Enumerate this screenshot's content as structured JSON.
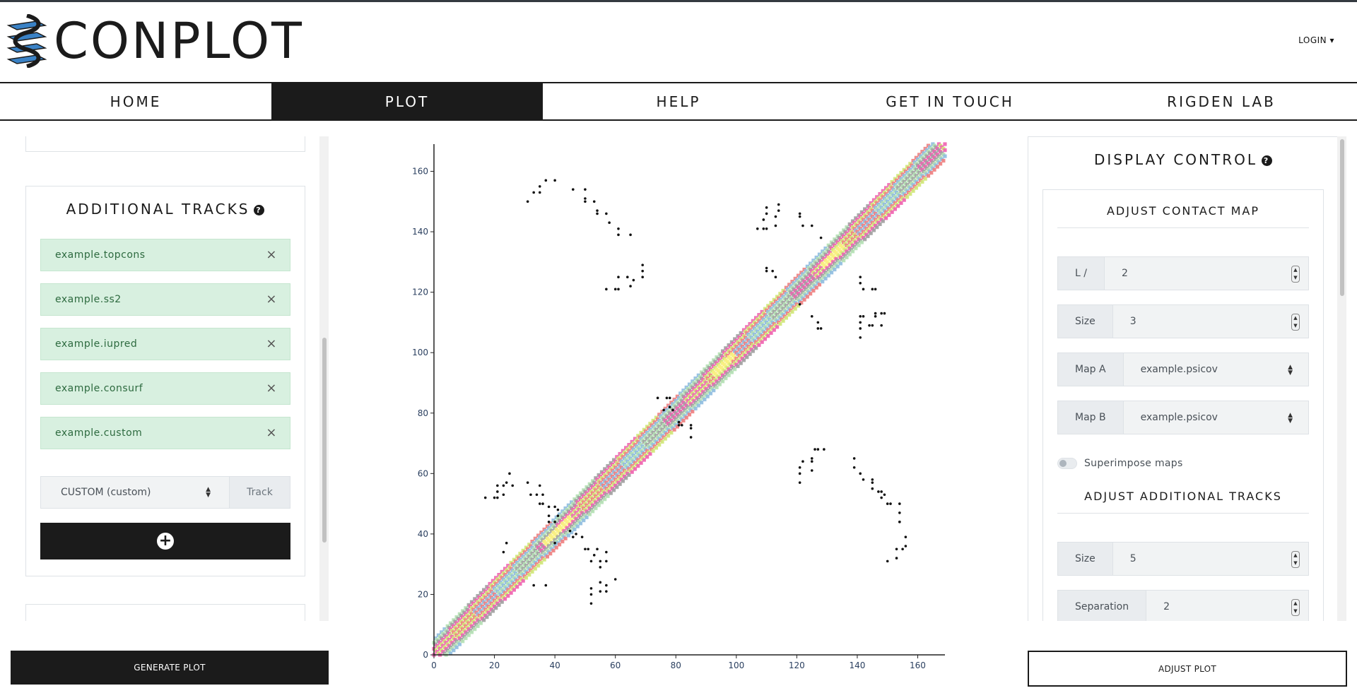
{
  "header": {
    "logo_text": "CONPLOT",
    "login_label": "LOGIN ▾"
  },
  "nav": {
    "items": [
      {
        "label": "HOME"
      },
      {
        "label": "PLOT"
      },
      {
        "label": "HELP"
      },
      {
        "label": "GET IN TOUCH"
      },
      {
        "label": "RIGDEN LAB"
      }
    ],
    "active": "PLOT"
  },
  "additional_tracks": {
    "title": "ADDITIONAL TRACKS",
    "help_icon": "question-circle-icon",
    "items": [
      {
        "label": "example.topcons"
      },
      {
        "label": "example.ss2"
      },
      {
        "label": "example.iupred"
      },
      {
        "label": "example.consurf"
      },
      {
        "label": "example.custom"
      }
    ],
    "select_value": "CUSTOM (custom)",
    "select_suffix": "Track",
    "add_button_icon": "plus-circle-icon"
  },
  "display_control": {
    "title": "DISPLAY CONTROL",
    "contact_map_section": "ADJUST CONTACT MAP",
    "l_label": "L /",
    "l_value": "2",
    "size_label": "Size",
    "size_value": "3",
    "map_a_label": "Map A",
    "map_a_value": "example.psicov",
    "map_b_label": "Map B",
    "map_b_value": "example.psicov",
    "superimpose_label": "Superimpose maps",
    "superimpose_on": false,
    "tracks_section": "ADJUST ADDITIONAL TRACKS",
    "track_size_label": "Size",
    "track_size_value": "5",
    "separation_label": "Separation",
    "separation_value": "2"
  },
  "buttons": {
    "generate": "GENERATE PLOT",
    "adjust": "ADJUST PLOT"
  },
  "chart_data": {
    "type": "scatter",
    "title": "",
    "xlabel": "",
    "ylabel": "",
    "xlim": [
      0,
      169
    ],
    "ylim": [
      0,
      169
    ],
    "x_ticks": [
      0,
      20,
      40,
      60,
      80,
      100,
      120,
      140,
      160
    ],
    "y_ticks": [
      0,
      20,
      40,
      60,
      80,
      100,
      120,
      140,
      160
    ],
    "grid": false,
    "diagonal_tracks": {
      "range": [
        0,
        169
      ],
      "track_colors": [
        "#f08080",
        "#8fbce0",
        "#b4e0b4",
        "#a0a0a0",
        "#f060b0",
        "#d0e878"
      ],
      "highlight_color": "#f8f080"
    },
    "contacts": [
      [
        31,
        150
      ],
      [
        33,
        153
      ],
      [
        35,
        153
      ],
      [
        35,
        155
      ],
      [
        37,
        157
      ],
      [
        40,
        157
      ],
      [
        46,
        154
      ],
      [
        50,
        154
      ],
      [
        50,
        151
      ],
      [
        50,
        150
      ],
      [
        53,
        150
      ],
      [
        54,
        147
      ],
      [
        54,
        146
      ],
      [
        57,
        146
      ],
      [
        58,
        143
      ],
      [
        61,
        141
      ],
      [
        61,
        139
      ],
      [
        65,
        139
      ],
      [
        57,
        121
      ],
      [
        60,
        121
      ],
      [
        61,
        121
      ],
      [
        61,
        125
      ],
      [
        64,
        125
      ],
      [
        65,
        122
      ],
      [
        66,
        124
      ],
      [
        69,
        125
      ],
      [
        69,
        127
      ],
      [
        69,
        129
      ],
      [
        107,
        141
      ],
      [
        109,
        141
      ],
      [
        110,
        141
      ],
      [
        109,
        144
      ],
      [
        110,
        146
      ],
      [
        110,
        148
      ],
      [
        113,
        145
      ],
      [
        113,
        142
      ],
      [
        114,
        147
      ],
      [
        114,
        149
      ],
      [
        121,
        146
      ],
      [
        121,
        145
      ],
      [
        122,
        142
      ],
      [
        125,
        142
      ],
      [
        128,
        138
      ],
      [
        110,
        128
      ],
      [
        110,
        127
      ],
      [
        112,
        127
      ],
      [
        113,
        125
      ],
      [
        121,
        116
      ],
      [
        125,
        112
      ],
      [
        127,
        110
      ],
      [
        127,
        108
      ],
      [
        128,
        108
      ],
      [
        141,
        125
      ],
      [
        141,
        123
      ],
      [
        142,
        121
      ],
      [
        145,
        121
      ],
      [
        146,
        121
      ],
      [
        141,
        112
      ],
      [
        142,
        112
      ],
      [
        146,
        112
      ],
      [
        146,
        113
      ],
      [
        148,
        113
      ],
      [
        149,
        113
      ],
      [
        141,
        110
      ],
      [
        141,
        108
      ],
      [
        144,
        109
      ],
      [
        145,
        109
      ],
      [
        148,
        109
      ],
      [
        141,
        105
      ],
      [
        17,
        52
      ],
      [
        20,
        52
      ],
      [
        21,
        52
      ],
      [
        21,
        54
      ],
      [
        21,
        56
      ],
      [
        23,
        56
      ],
      [
        23,
        53
      ],
      [
        24,
        57
      ],
      [
        26,
        56
      ],
      [
        25,
        60
      ],
      [
        31,
        57
      ],
      [
        32,
        53
      ],
      [
        34,
        53
      ],
      [
        35,
        56
      ],
      [
        35,
        50
      ],
      [
        36,
        50
      ],
      [
        36,
        53
      ],
      [
        38,
        49
      ],
      [
        40,
        49
      ],
      [
        41,
        48
      ],
      [
        38,
        46
      ],
      [
        38,
        44
      ],
      [
        40,
        44
      ],
      [
        41,
        46
      ],
      [
        40,
        37
      ],
      [
        24,
        37
      ],
      [
        23,
        34
      ],
      [
        33,
        23
      ],
      [
        37,
        23
      ],
      [
        45,
        41
      ],
      [
        46,
        39
      ],
      [
        47,
        40
      ],
      [
        49,
        39
      ],
      [
        50,
        35
      ],
      [
        51,
        35
      ],
      [
        52,
        31
      ],
      [
        53,
        33
      ],
      [
        54,
        35
      ],
      [
        55,
        31
      ],
      [
        55,
        29
      ],
      [
        57,
        31
      ],
      [
        57,
        34
      ],
      [
        52,
        22
      ],
      [
        52,
        20
      ],
      [
        52,
        17
      ],
      [
        55,
        24
      ],
      [
        55,
        21
      ],
      [
        57,
        21
      ],
      [
        57,
        23
      ],
      [
        60,
        25
      ],
      [
        74,
        85
      ],
      [
        77,
        85
      ],
      [
        78,
        85
      ],
      [
        76,
        81
      ],
      [
        78,
        82
      ],
      [
        79,
        81
      ],
      [
        81,
        77
      ],
      [
        82,
        76
      ],
      [
        81,
        76
      ],
      [
        85,
        76
      ],
      [
        85,
        75
      ],
      [
        85,
        72
      ],
      [
        121,
        60
      ],
      [
        121,
        62
      ],
      [
        121,
        57
      ],
      [
        122,
        64
      ],
      [
        125,
        65
      ],
      [
        125,
        64
      ],
      [
        125,
        61
      ],
      [
        126,
        68
      ],
      [
        127,
        68
      ],
      [
        129,
        68
      ],
      [
        139,
        65
      ],
      [
        139,
        62
      ],
      [
        141,
        60
      ],
      [
        142,
        58
      ],
      [
        145,
        58
      ],
      [
        145,
        57
      ],
      [
        145,
        55
      ],
      [
        147,
        54
      ],
      [
        148,
        54
      ],
      [
        148,
        52
      ],
      [
        149,
        53
      ],
      [
        150,
        50
      ],
      [
        151,
        50
      ],
      [
        154,
        50
      ],
      [
        154,
        47
      ],
      [
        154,
        44
      ],
      [
        154,
        44
      ],
      [
        156,
        39
      ],
      [
        156,
        36
      ],
      [
        155,
        35
      ],
      [
        153,
        35
      ],
      [
        153,
        32
      ],
      [
        150,
        31
      ]
    ]
  }
}
